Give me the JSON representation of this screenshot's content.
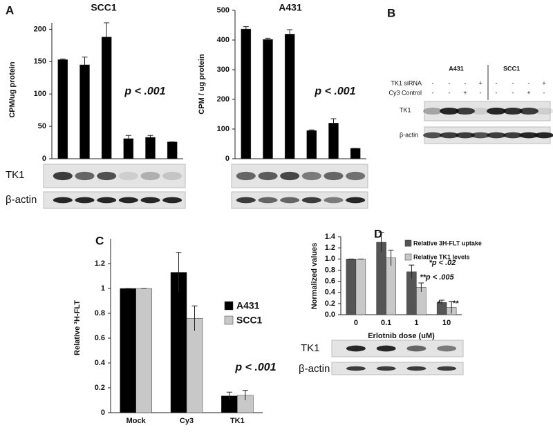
{
  "panel_labels": [
    "A",
    "B",
    "C",
    "D"
  ],
  "chart_data": [
    {
      "type": "bar",
      "title": "SCC1",
      "y_label": "CPM/ug protein",
      "annotation": "p < .001",
      "values": [
        153,
        145,
        188,
        31,
        33,
        26
      ],
      "errors": [
        1,
        12,
        22,
        5,
        3,
        0
      ],
      "color": "#000000",
      "ylim": [
        0,
        210
      ],
      "yticks": [
        0,
        50,
        100,
        150,
        200
      ],
      "blot_labels": [
        "TK1",
        "β-actin"
      ]
    },
    {
      "type": "bar",
      "title": "A431",
      "y_label": "CPM / ug protein",
      "annotation": "p < .001",
      "values": [
        437,
        402,
        420,
        95,
        120,
        35
      ],
      "errors": [
        8,
        4,
        15,
        2,
        15,
        0
      ],
      "color": "#000000",
      "ylim": [
        0,
        500
      ],
      "yticks": [
        0,
        100,
        200,
        300,
        400,
        500
      ]
    },
    {
      "type": "grouped-bar",
      "y_label": "Relative ³H-FLT",
      "annotation": "p < .001",
      "categories": [
        "Mock",
        "Cy3",
        "TK1"
      ],
      "series": [
        {
          "name": "A431",
          "color": "#000000",
          "values": [
            1,
            1.13,
            0.135
          ],
          "errors": [
            0,
            0.16,
            0.03
          ]
        },
        {
          "name": "SCC1",
          "color": "#c8c8c8",
          "values": [
            1,
            0.76,
            0.14
          ],
          "errors": [
            0,
            0.1,
            0.04
          ]
        }
      ],
      "ylim": [
        0,
        1.4
      ],
      "yticks": [
        0,
        0.2,
        0.4,
        0.6,
        0.8,
        1,
        1.2
      ]
    },
    {
      "type": "grouped-bar",
      "y_label": "Normalized values",
      "x_label": "Erlotnib dose (uM)",
      "categories": [
        "0",
        "0.1",
        "1",
        "10"
      ],
      "series": [
        {
          "name": "Relative 3H-FLT uptake",
          "color": "#555555",
          "values": [
            1,
            1.3,
            0.77,
            0.22
          ],
          "errors": [
            0,
            0.18,
            0.12,
            0.04
          ]
        },
        {
          "name": "Relative TK1 levels",
          "color": "#c8c8c8",
          "values": [
            1,
            1.02,
            0.49,
            0.13
          ],
          "errors": [
            0,
            0.14,
            0.08,
            0.11
          ]
        }
      ],
      "ylim": [
        0,
        1.4
      ],
      "yticks": [
        {
          "value": 0,
          "label": "0.0"
        },
        0.2,
        0.4,
        0.6,
        0.8,
        {
          "value": 1,
          "label": "1.0"
        },
        1.2,
        1.4
      ],
      "annotations": [
        "*p < .02",
        "**p < .005",
        "*",
        "**"
      ],
      "blot_labels": [
        "TK1",
        "β-actin"
      ]
    }
  ],
  "panel_b": {
    "groups": [
      "A431",
      "SCC1"
    ],
    "rows": [
      {
        "label": "TK1 siRNA",
        "signs": [
          "-",
          "-",
          "-",
          "+",
          "-",
          "-",
          "-",
          "+"
        ]
      },
      {
        "label": "Cy3 Control",
        "signs": [
          "-",
          "-",
          "+",
          "-",
          "-",
          "-",
          "+",
          "-"
        ]
      }
    ],
    "blot_labels": [
      "TK1",
      "β-actin"
    ]
  }
}
